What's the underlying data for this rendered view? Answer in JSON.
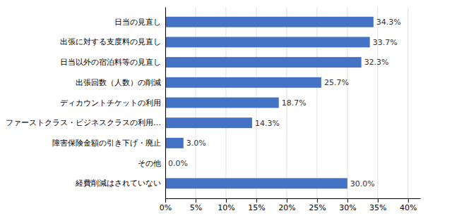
{
  "chart_data": {
    "type": "bar",
    "orientation": "horizontal",
    "categories": [
      "日当の見直し",
      "出張に対する支度料の見直し",
      "日当以外の宿泊料等の見直し",
      "出張回数（人数）の削減",
      "ディカウントチケットの利用",
      "ファーストクラス・ビジネスクラスの利用…",
      "障害保険金額の引き下げ・廃止",
      "その他",
      "経費削減はされていない"
    ],
    "values": [
      34.3,
      33.7,
      32.3,
      25.7,
      18.7,
      14.3,
      3.0,
      0.0,
      30.0
    ],
    "value_labels": [
      "34.3%",
      "33.7%",
      "32.3%",
      "25.7%",
      "18.7%",
      "14.3%",
      "3.0%",
      "0.0%",
      "30.0%"
    ],
    "data_labels": true,
    "color": "#4472C4",
    "xlim": [
      0,
      42
    ],
    "xticks": [
      {
        "value": 0,
        "label": "0%"
      },
      {
        "value": 5,
        "label": "5%"
      },
      {
        "value": 10,
        "label": "10%"
      },
      {
        "value": 15,
        "label": "15%"
      },
      {
        "value": 20,
        "label": "20%"
      },
      {
        "value": 25,
        "label": "25%"
      },
      {
        "value": 30,
        "label": "30%"
      },
      {
        "value": 35,
        "label": "35%"
      },
      {
        "value": 40,
        "label": "40%"
      }
    ],
    "grid": true
  }
}
